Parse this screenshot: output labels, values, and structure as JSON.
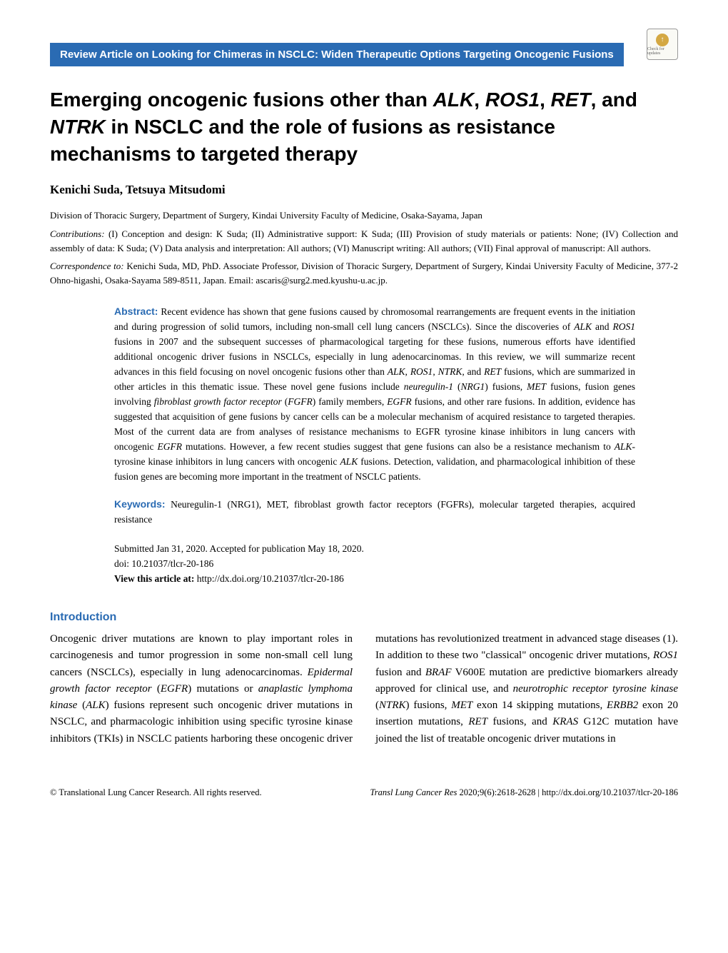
{
  "badge": {
    "top": "↑",
    "text": "Check for updates"
  },
  "banner": "Review Article on Looking for Chimeras in NSCLC: Widen Therapeutic Options Targeting Oncogenic Fusions",
  "title_parts": {
    "p1": "Emerging oncogenic fusions other than ",
    "i1": "ALK",
    "p2": ", ",
    "i2": "ROS1",
    "p3": ", ",
    "i3": "RET",
    "p4": ", and ",
    "i4": "NTRK",
    "p5": " in NSCLC and the role of fusions as resistance mechanisms to targeted therapy"
  },
  "authors": "Kenichi Suda, Tetsuya Mitsudomi",
  "affiliation": "Division of Thoracic Surgery, Department of Surgery, Kindai University Faculty of Medicine, Osaka-Sayama, Japan",
  "contrib_label": "Contributions:",
  "contrib_text": " (I) Conception and design: K Suda; (II) Administrative support: K Suda; (III) Provision of study materials or patients: None; (IV) Collection and assembly of data: K Suda; (V) Data analysis and interpretation: All authors; (VI) Manuscript writing: All authors; (VII) Final approval of manuscript: All authors.",
  "corr_label": "Correspondence to:",
  "corr_text": " Kenichi Suda, MD, PhD. Associate Professor, Division of Thoracic Surgery, Department of Surgery, Kindai University Faculty of Medicine, 377-2 Ohno-higashi, Osaka-Sayama 589-8511, Japan. Email: ascaris@surg2.med.kyushu-u.ac.jp.",
  "abstract_label": "Abstract:",
  "abstract_html": " Recent evidence has shown that gene fusions caused by chromosomal rearrangements are frequent events in the initiation and during progression of solid tumors, including non-small cell lung cancers (NSCLCs). Since the discoveries of <i>ALK</i> and <i>ROS1</i> fusions in 2007 and the subsequent successes of pharmacological targeting for these fusions, numerous efforts have identified additional oncogenic driver fusions in NSCLCs, especially in lung adenocarcinomas. In this review, we will summarize recent advances in this field focusing on novel oncogenic fusions other than <i>ALK</i>, <i>ROS1</i>, <i>NTRK</i>, and <i>RET</i> fusions, which are summarized in other articles in this thematic issue. These novel gene fusions include <i>neuregulin-1</i> (<i>NRG1</i>) fusions, <i>MET</i> fusions, fusion genes involving <i>fibroblast growth factor receptor</i> (<i>FGFR</i>) family members, <i>EGFR</i> fusions, and other rare fusions. In addition, evidence has suggested that acquisition of gene fusions by cancer cells can be a molecular mechanism of acquired resistance to targeted therapies. Most of the current data are from analyses of resistance mechanisms to EGFR tyrosine kinase inhibitors in lung cancers with oncogenic <i>EGFR</i> mutations. However, a few recent studies suggest that gene fusions can also be a resistance mechanism to <i>ALK</i>-tyrosine kinase inhibitors in lung cancers with oncogenic <i>ALK</i> fusions. Detection, validation, and pharmacological inhibition of these fusion genes are becoming more important in the treatment of NSCLC patients.",
  "keywords_label": "Keywords:",
  "keywords_text": " Neuregulin-1 (NRG1), MET, fibroblast growth factor receptors (FGFRs), molecular targeted therapies, acquired resistance",
  "dates": {
    "submitted": "Submitted Jan 31, 2020. Accepted for publication May 18, 2020.",
    "doi": "doi: 10.21037/tlcr-20-186",
    "view_label": "View this article at: ",
    "view_url": "http://dx.doi.org/10.21037/tlcr-20-186"
  },
  "intro_head": "Introduction",
  "intro_html": "Oncogenic driver mutations are known to play important roles in carcinogenesis and tumor progression in some non-small cell lung cancers (NSCLCs), especially in lung adenocarcinomas. <i>Epidermal growth factor receptor</i> (<i>EGFR</i>) mutations or <i>anaplastic lymphoma kinase</i> (<i>ALK</i>) fusions represent such oncogenic driver mutations in NSCLC, and pharmacologic inhibition using specific tyrosine kinase inhibitors (TKIs) in NSCLC patients harboring these oncogenic driver mutations has revolutionized treatment in advanced stage diseases (1). In addition to these two \"classical\" oncogenic driver mutations, <i>ROS1</i> fusion and <i>BRAF</i> V600E mutation are predictive biomarkers already approved for clinical use, and <i>neurotrophic receptor tyrosine kinase</i> (<i>NTRK</i>) fusions, <i>MET</i> exon 14 skipping mutations, <i>ERBB2</i> exon 20 insertion mutations, <i>RET</i> fusions, and <i>KRAS</i> G12C mutation have joined the list of treatable oncogenic driver mutations in",
  "footer": {
    "left": "© Translational Lung Cancer Research. All rights reserved.",
    "right_ital": "Transl Lung Cancer Res",
    "right_rest": " 2020;9(6):2618-2628 | http://dx.doi.org/10.21037/tlcr-20-186"
  },
  "colors": {
    "brand_blue": "#2a6bb3",
    "badge_bg": "#d4a843"
  }
}
